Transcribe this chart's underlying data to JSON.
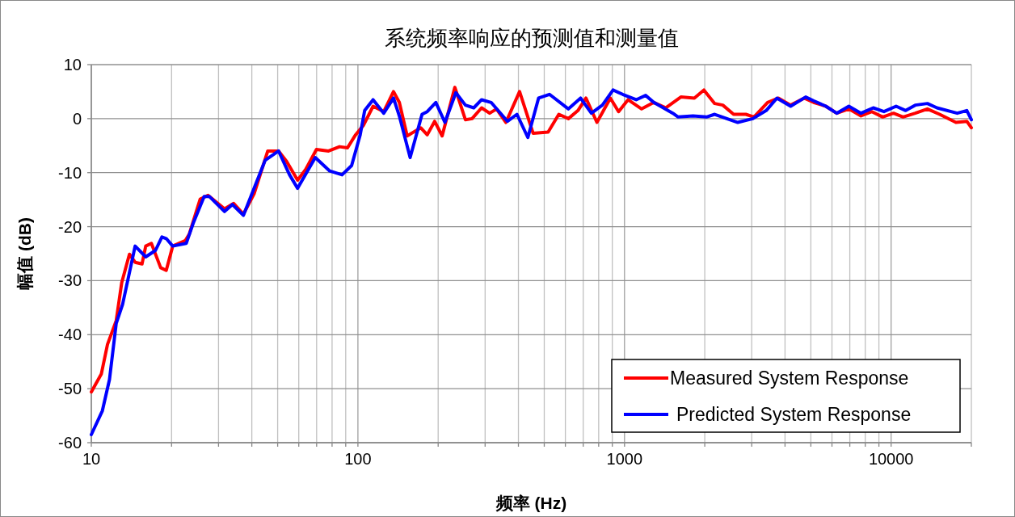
{
  "chart_data": {
    "type": "line",
    "title": "系统频率响应的预测值和测量值",
    "xlabel": "频率 (Hz)",
    "ylabel": "幅值 (dB)",
    "log": "x",
    "xlim": [
      10,
      20000
    ],
    "xticks": [
      10,
      {
        "value": 20,
        "label": null
      },
      {
        "value": 30,
        "label": null
      },
      {
        "value": 40,
        "label": null
      },
      {
        "value": 50,
        "label": null
      },
      {
        "value": 60,
        "label": null
      },
      {
        "value": 70,
        "label": null
      },
      {
        "value": 80,
        "label": null
      },
      {
        "value": 90,
        "label": null
      },
      100,
      {
        "value": 200,
        "label": null
      },
      {
        "value": 300,
        "label": null
      },
      {
        "value": 400,
        "label": null
      },
      {
        "value": 500,
        "label": null
      },
      {
        "value": 600,
        "label": null
      },
      {
        "value": 700,
        "label": null
      },
      {
        "value": 800,
        "label": null
      },
      {
        "value": 900,
        "label": null
      },
      1000,
      {
        "value": 2000,
        "label": null
      },
      {
        "value": 3000,
        "label": null
      },
      {
        "value": 4000,
        "label": null
      },
      {
        "value": 5000,
        "label": null
      },
      {
        "value": 6000,
        "label": null
      },
      {
        "value": 7000,
        "label": null
      },
      {
        "value": 8000,
        "label": null
      },
      {
        "value": 9000,
        "label": null
      },
      10000,
      {
        "value": 20000,
        "label": null
      }
    ],
    "ylim": [
      -60,
      10
    ],
    "yticks": [
      -60,
      -50,
      -40,
      -30,
      -20,
      -10,
      0,
      10
    ],
    "grid": true,
    "legend": "bottom right",
    "line_style": "solid",
    "marker": "none",
    "series": [
      {
        "name": "Measured System Response",
        "color": "#ff0000",
        "x": [
          10,
          10.9,
          11.5,
          12.4,
          13.0,
          13.9,
          14.6,
          15.5,
          16.0,
          16.8,
          18.2,
          19.1,
          20.2,
          22.5,
          23.3,
          25.6,
          27.4,
          31.6,
          34.2,
          37.2,
          40.8,
          45.9,
          50.4,
          54.0,
          59.4,
          63.7,
          69.9,
          77.6,
          85.3,
          91.4,
          98,
          105,
          114,
          125,
          136,
          143,
          153,
          172,
          182,
          194,
          207,
          231,
          253,
          268,
          291,
          312,
          331,
          359,
          404,
          454,
          517,
          567,
          616,
          669,
          717,
          788,
          885,
          950,
          1031,
          1159,
          1288,
          1430,
          1627,
          1828,
          1985,
          2179,
          2337,
          2566,
          2851,
          3060,
          3441,
          3779,
          4199,
          4721,
          5120,
          5690,
          6250,
          6940,
          7710,
          8470,
          9300,
          10210,
          11090,
          12320,
          13680,
          15200,
          17500,
          19230,
          20000
        ],
        "values": [
          -50.6,
          -47.3,
          -41.8,
          -37.4,
          -30.4,
          -25.1,
          -26.6,
          -26.9,
          -23.6,
          -23.1,
          -27.6,
          -28.1,
          -23.6,
          -22.6,
          -21.4,
          -14.9,
          -14.2,
          -16.7,
          -15.7,
          -17.7,
          -13.9,
          -6.0,
          -6.0,
          -7.9,
          -11.4,
          -9.4,
          -5.7,
          -6.0,
          -5.2,
          -5.4,
          -3.0,
          -1.2,
          2.3,
          1.3,
          5.0,
          3.0,
          -3.2,
          -1.7,
          -3.0,
          -0.5,
          -3.2,
          5.8,
          -0.2,
          0.0,
          2.0,
          1.0,
          1.8,
          -0.7,
          5.0,
          -2.7,
          -2.5,
          0.8,
          0.0,
          1.5,
          3.8,
          -0.7,
          3.8,
          1.3,
          3.5,
          1.8,
          3.0,
          2.0,
          4.0,
          3.8,
          5.3,
          2.8,
          2.5,
          0.8,
          0.8,
          0.3,
          3.0,
          3.8,
          2.5,
          3.8,
          3.0,
          2.3,
          1.0,
          1.8,
          0.5,
          1.3,
          0.3,
          1.0,
          0.3,
          1.0,
          1.8,
          0.8,
          -0.7,
          -0.5,
          -1.7
        ]
      },
      {
        "name": "Predicted System Response",
        "color": "#0000ff",
        "x": [
          10,
          11.0,
          11.7,
          12.4,
          13.1,
          14.6,
          16.0,
          17.4,
          18.4,
          19.1,
          20.2,
          22.7,
          24.1,
          26.5,
          27.7,
          31.6,
          33.8,
          37.2,
          40.8,
          44.9,
          50.4,
          55.4,
          59.4,
          69.2,
          78.4,
          87.2,
          94.7,
          102,
          106,
          114,
          125,
          136,
          143,
          157,
          174,
          182,
          196,
          212,
          233,
          253,
          272,
          291,
          316,
          364,
          395,
          434,
          476,
          523,
          616,
          684,
          751,
          826,
          906,
          984,
          1106,
          1200,
          1288,
          1518,
          1589,
          1807,
          2031,
          2179,
          2420,
          2660,
          3030,
          3400,
          3730,
          4199,
          4780,
          5120,
          5690,
          6250,
          6940,
          7710,
          8570,
          9400,
          10440,
          11340,
          12320,
          13680,
          14860,
          17700,
          19230,
          20000
        ],
        "values": [
          -58.5,
          -54.1,
          -48.3,
          -37.9,
          -34.4,
          -23.6,
          -25.6,
          -24.4,
          -21.9,
          -22.2,
          -23.6,
          -23.1,
          -19.4,
          -14.4,
          -14.4,
          -17.2,
          -15.9,
          -17.9,
          -12.9,
          -7.7,
          -6.0,
          -10.4,
          -12.9,
          -7.2,
          -9.7,
          -10.4,
          -8.7,
          -3.0,
          1.5,
          3.5,
          1.0,
          3.8,
          0.5,
          -7.2,
          0.8,
          1.3,
          3.0,
          -0.7,
          4.8,
          2.5,
          2.0,
          3.5,
          3.0,
          -0.5,
          0.8,
          -3.5,
          3.8,
          4.5,
          1.8,
          3.8,
          1.0,
          2.5,
          5.3,
          4.5,
          3.5,
          4.3,
          3.0,
          1.0,
          0.3,
          0.5,
          0.3,
          0.8,
          0.0,
          -0.7,
          0.0,
          1.5,
          3.8,
          2.3,
          4.0,
          3.3,
          2.3,
          1.0,
          2.3,
          1.0,
          2.0,
          1.3,
          2.3,
          1.5,
          2.5,
          2.8,
          2.0,
          1.0,
          1.5,
          -0.2
        ]
      }
    ]
  }
}
